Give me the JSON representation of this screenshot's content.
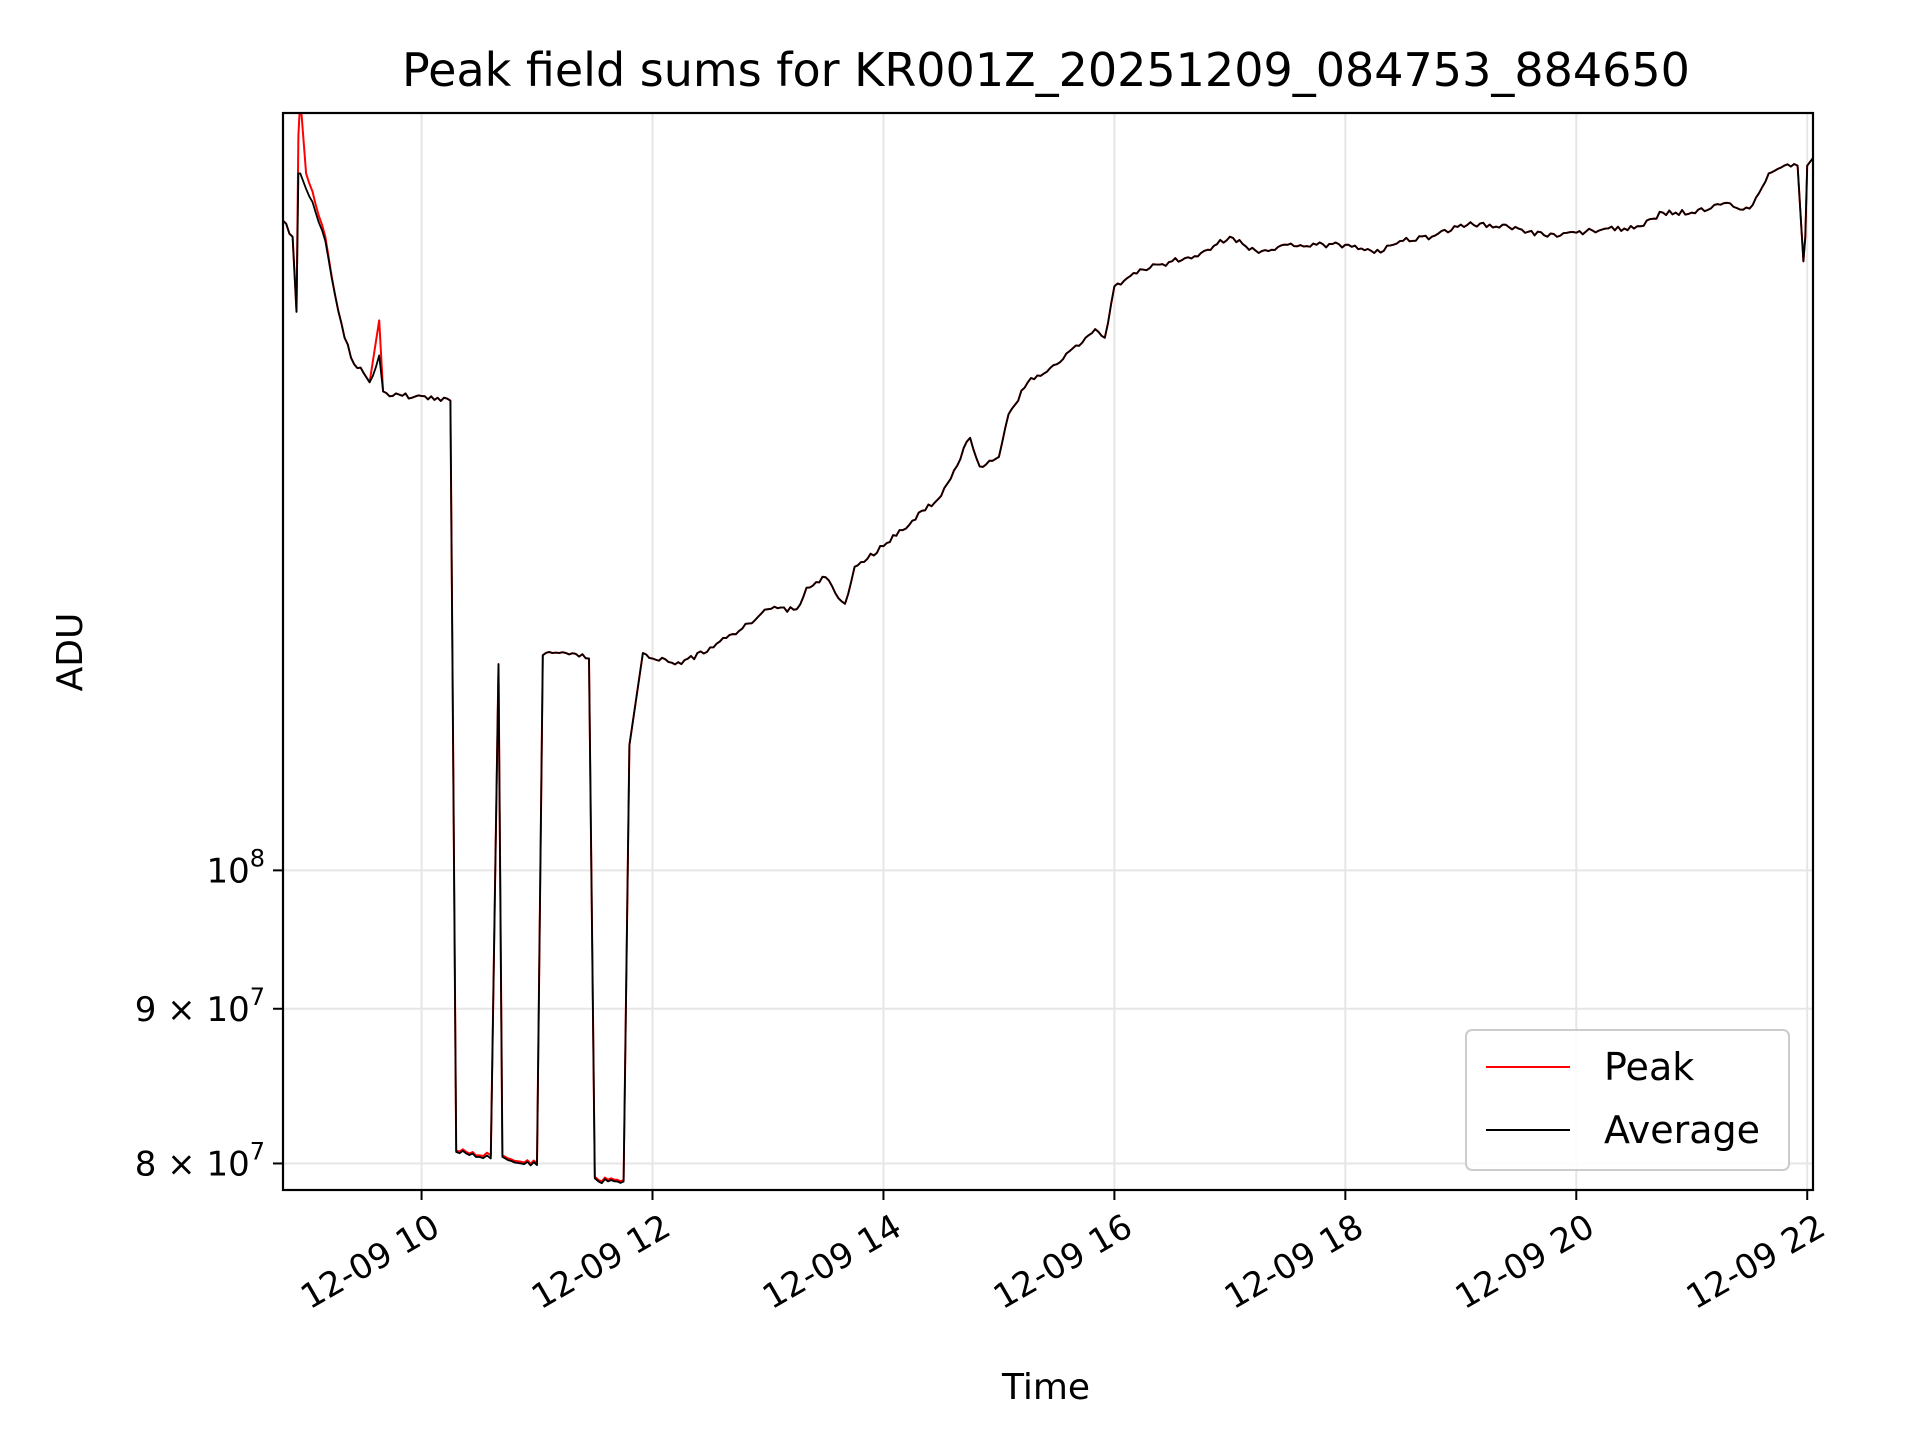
{
  "chart_data": {
    "type": "line",
    "title": "Peak field sums for KR001Z_20251209_084753_884650",
    "xlabel": "Time",
    "ylabel": "ADU",
    "yscale": "log",
    "grid": true,
    "legend_position": "bottom-right",
    "x_ticks": [
      "12-09 10",
      "12-09 12",
      "12-09 14",
      "12-09 16",
      "12-09 18",
      "12-09 20",
      "12-09 22"
    ],
    "y_ticks": [
      {
        "value": 80000000,
        "mantissa": "8",
        "sep": " × ",
        "base": "10",
        "exp": "7"
      },
      {
        "value": 90000000,
        "mantissa": "9",
        "sep": " × ",
        "base": "10",
        "exp": "7"
      },
      {
        "value": 100000000,
        "mantissa": "",
        "sep": "",
        "base": "10",
        "exp": "8"
      }
    ],
    "xlim": [
      "2025-12-09 08:48",
      "2025-12-09 22:03"
    ],
    "ylim": [
      78400000,
      178000000
    ],
    "series": [
      {
        "name": "Peak",
        "color": "#ff0000",
        "x": [
          "2025-12-09 08:48",
          "2025-12-09 08:53",
          "2025-12-09 08:55",
          "2025-12-09 08:56",
          "2025-12-09 08:57",
          "2025-12-09 09:00",
          "2025-12-09 09:05",
          "2025-12-09 09:10",
          "2025-12-09 09:15",
          "2025-12-09 09:20",
          "2025-12-09 09:25",
          "2025-12-09 09:30",
          "2025-12-09 09:33",
          "2025-12-09 09:38",
          "2025-12-09 09:40",
          "2025-12-09 09:45",
          "2025-12-09 10:00",
          "2025-12-09 10:15",
          "2025-12-09 10:16",
          "2025-12-09 10:18",
          "2025-12-09 10:30",
          "2025-12-09 10:36",
          "2025-12-09 10:40",
          "2025-12-09 10:42",
          "2025-12-09 10:45",
          "2025-12-09 10:55",
          "2025-12-09 11:00",
          "2025-12-09 11:03",
          "2025-12-09 11:08",
          "2025-12-09 11:15",
          "2025-12-09 11:27",
          "2025-12-09 11:30",
          "2025-12-09 11:32",
          "2025-12-09 11:45",
          "2025-12-09 11:48",
          "2025-12-09 11:55",
          "2025-12-09 12:00",
          "2025-12-09 12:15",
          "2025-12-09 12:30",
          "2025-12-09 12:45",
          "2025-12-09 13:00",
          "2025-12-09 13:15",
          "2025-12-09 13:20",
          "2025-12-09 13:30",
          "2025-12-09 13:35",
          "2025-12-09 13:40",
          "2025-12-09 13:45",
          "2025-12-09 14:00",
          "2025-12-09 14:15",
          "2025-12-09 14:30",
          "2025-12-09 14:45",
          "2025-12-09 14:50",
          "2025-12-09 15:00",
          "2025-12-09 15:05",
          "2025-12-09 15:15",
          "2025-12-09 15:30",
          "2025-12-09 15:45",
          "2025-12-09 15:50",
          "2025-12-09 15:55",
          "2025-12-09 16:00",
          "2025-12-09 16:15",
          "2025-12-09 16:30",
          "2025-12-09 16:45",
          "2025-12-09 17:00",
          "2025-12-09 17:15",
          "2025-12-09 17:30",
          "2025-12-09 17:45",
          "2025-12-09 18:00",
          "2025-12-09 18:15",
          "2025-12-09 18:30",
          "2025-12-09 18:45",
          "2025-12-09 19:00",
          "2025-12-09 19:15",
          "2025-12-09 19:30",
          "2025-12-09 19:45",
          "2025-12-09 20:00",
          "2025-12-09 20:15",
          "2025-12-09 20:30",
          "2025-12-09 20:45",
          "2025-12-09 21:00",
          "2025-12-09 21:15",
          "2025-12-09 21:30",
          "2025-12-09 21:40",
          "2025-12-09 21:48",
          "2025-12-09 21:55",
          "2025-12-09 21:58",
          "2025-12-09 21:59",
          "2025-12-09 22:00",
          "2025-12-09 22:03"
        ],
        "y": [
          164000000,
          162000000,
          153000000,
          175000000,
          180000000,
          170000000,
          166000000,
          162000000,
          155000000,
          150000000,
          147000000,
          146000000,
          145000000,
          152000000,
          144000000,
          143500000,
          143500000,
          143000000,
          118000000,
          80800000,
          80500000,
          80500000,
          117000000,
          80500000,
          80300000,
          80200000,
          80000000,
          117800000,
          118000000,
          118000000,
          117500000,
          79200000,
          79000000,
          79000000,
          110000000,
          118000000,
          117500000,
          117000000,
          118500000,
          120000000,
          122000000,
          122000000,
          124000000,
          125000000,
          123500000,
          122500000,
          126000000,
          128000000,
          130500000,
          133000000,
          139000000,
          136000000,
          137000000,
          141500000,
          145000000,
          147000000,
          150000000,
          151000000,
          150000000,
          156000000,
          158000000,
          159000000,
          160000000,
          162000000,
          160000000,
          161000000,
          161000000,
          161000000,
          160000000,
          161500000,
          162000000,
          163500000,
          163500000,
          163000000,
          162000000,
          162500000,
          163000000,
          163000000,
          165000000,
          165000000,
          166000000,
          165500000,
          170000000,
          171000000,
          171000000,
          159000000,
          162000000,
          171000000,
          172000000
        ]
      },
      {
        "name": "Average",
        "color": "#000000",
        "x": [
          "2025-12-09 08:48",
          "2025-12-09 08:53",
          "2025-12-09 08:55",
          "2025-12-09 08:56",
          "2025-12-09 08:57",
          "2025-12-09 09:00",
          "2025-12-09 09:05",
          "2025-12-09 09:10",
          "2025-12-09 09:15",
          "2025-12-09 09:20",
          "2025-12-09 09:25",
          "2025-12-09 09:30",
          "2025-12-09 09:33",
          "2025-12-09 09:38",
          "2025-12-09 09:40",
          "2025-12-09 09:45",
          "2025-12-09 10:00",
          "2025-12-09 10:15",
          "2025-12-09 10:16",
          "2025-12-09 10:18",
          "2025-12-09 10:30",
          "2025-12-09 10:36",
          "2025-12-09 10:40",
          "2025-12-09 10:42",
          "2025-12-09 10:45",
          "2025-12-09 10:55",
          "2025-12-09 11:00",
          "2025-12-09 11:03",
          "2025-12-09 11:08",
          "2025-12-09 11:15",
          "2025-12-09 11:27",
          "2025-12-09 11:30",
          "2025-12-09 11:32",
          "2025-12-09 11:45",
          "2025-12-09 11:48",
          "2025-12-09 11:55",
          "2025-12-09 12:00",
          "2025-12-09 12:15",
          "2025-12-09 12:30",
          "2025-12-09 12:45",
          "2025-12-09 13:00",
          "2025-12-09 13:15",
          "2025-12-09 13:20",
          "2025-12-09 13:30",
          "2025-12-09 13:35",
          "2025-12-09 13:40",
          "2025-12-09 13:45",
          "2025-12-09 14:00",
          "2025-12-09 14:15",
          "2025-12-09 14:30",
          "2025-12-09 14:45",
          "2025-12-09 14:50",
          "2025-12-09 15:00",
          "2025-12-09 15:05",
          "2025-12-09 15:15",
          "2025-12-09 15:30",
          "2025-12-09 15:45",
          "2025-12-09 15:50",
          "2025-12-09 15:55",
          "2025-12-09 16:00",
          "2025-12-09 16:15",
          "2025-12-09 16:30",
          "2025-12-09 16:45",
          "2025-12-09 17:00",
          "2025-12-09 17:15",
          "2025-12-09 17:30",
          "2025-12-09 17:45",
          "2025-12-09 18:00",
          "2025-12-09 18:15",
          "2025-12-09 18:30",
          "2025-12-09 18:45",
          "2025-12-09 19:00",
          "2025-12-09 19:15",
          "2025-12-09 19:30",
          "2025-12-09 19:45",
          "2025-12-09 20:00",
          "2025-12-09 20:15",
          "2025-12-09 20:30",
          "2025-12-09 20:45",
          "2025-12-09 21:00",
          "2025-12-09 21:15",
          "2025-12-09 21:30",
          "2025-12-09 21:40",
          "2025-12-09 21:48",
          "2025-12-09 21:55",
          "2025-12-09 21:58",
          "2025-12-09 21:59",
          "2025-12-09 22:00",
          "2025-12-09 22:03"
        ],
        "y": [
          164000000,
          162000000,
          153000000,
          170000000,
          170000000,
          168000000,
          165000000,
          161500000,
          155000000,
          150000000,
          147000000,
          146000000,
          145000000,
          148000000,
          144000000,
          143500000,
          143500000,
          143000000,
          118000000,
          80700000,
          80400000,
          80300000,
          117000000,
          80400000,
          80200000,
          80100000,
          79900000,
          117800000,
          118000000,
          118000000,
          117500000,
          79100000,
          78900000,
          78900000,
          110000000,
          118000000,
          117500000,
          117000000,
          118500000,
          120000000,
          122000000,
          122000000,
          124000000,
          125000000,
          123500000,
          122500000,
          126000000,
          128000000,
          130500000,
          133000000,
          139000000,
          136000000,
          137000000,
          141500000,
          145000000,
          147000000,
          150000000,
          151000000,
          150000000,
          156000000,
          158000000,
          159000000,
          160000000,
          162000000,
          160000000,
          161000000,
          161000000,
          161000000,
          160000000,
          161500000,
          162000000,
          163500000,
          163500000,
          163000000,
          162000000,
          162500000,
          163000000,
          163000000,
          165000000,
          165000000,
          166000000,
          165500000,
          170000000,
          171000000,
          171000000,
          159000000,
          162000000,
          171000000,
          172000000
        ]
      }
    ]
  }
}
